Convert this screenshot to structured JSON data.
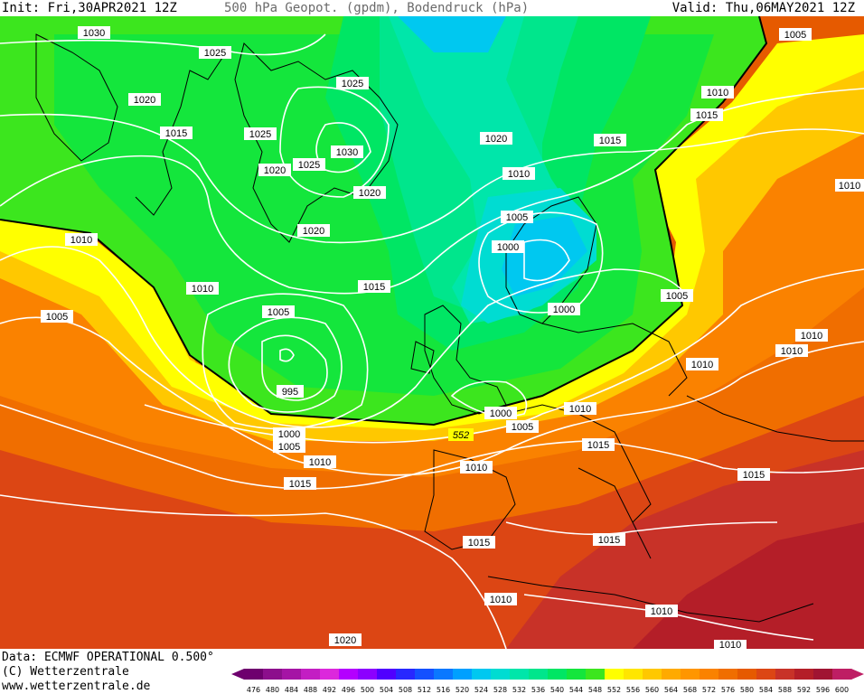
{
  "header": {
    "init": "Init: Fri,30APR2021 12Z",
    "title": "500 hPa Geopot. (gpdm), Bodendruck (hPa)",
    "valid": "Valid: Thu,06MAY2021 12Z"
  },
  "footer": {
    "data_source": "Data: ECMWF OPERATIONAL 0.500°",
    "copyright": "(C) Wetterzentrale",
    "website": "www.wetterzentrale.de"
  },
  "legend": {
    "levels": [
      "476",
      "480",
      "484",
      "488",
      "492",
      "496",
      "500",
      "504",
      "508",
      "512",
      "516",
      "520",
      "524",
      "528",
      "532",
      "536",
      "540",
      "544",
      "548",
      "552",
      "556",
      "560",
      "564",
      "568",
      "572",
      "576",
      "580",
      "584",
      "588",
      "592",
      "596",
      "600"
    ],
    "colors": [
      "#6e006e",
      "#8c0f8c",
      "#a514a5",
      "#c31ec3",
      "#dc28dc",
      "#b400ff",
      "#8c00ff",
      "#5000ff",
      "#2828ff",
      "#1450ff",
      "#0a78ff",
      "#00a0ff",
      "#00c8f0",
      "#00dcd2",
      "#00e6aa",
      "#00e68c",
      "#00e664",
      "#14e63c",
      "#3ce61e",
      "#ffff00",
      "#ffe600",
      "#ffc800",
      "#ffaa00",
      "#ff9600",
      "#fa8200",
      "#f06e00",
      "#e65a00",
      "#dc4614",
      "#c83228",
      "#b41e28",
      "#a01432",
      "#be1e64"
    ]
  },
  "isobars": [
    {
      "label": "1030",
      "kind": "pressure"
    },
    {
      "label": "1025",
      "kind": "pressure"
    },
    {
      "label": "1020",
      "kind": "pressure"
    },
    {
      "label": "1015",
      "kind": "pressure"
    },
    {
      "label": "1010",
      "kind": "pressure"
    },
    {
      "label": "1005",
      "kind": "pressure"
    },
    {
      "label": "1000",
      "kind": "pressure"
    },
    {
      "label": "995",
      "kind": "pressure"
    },
    {
      "label": "552",
      "kind": "geopotential"
    }
  ]
}
